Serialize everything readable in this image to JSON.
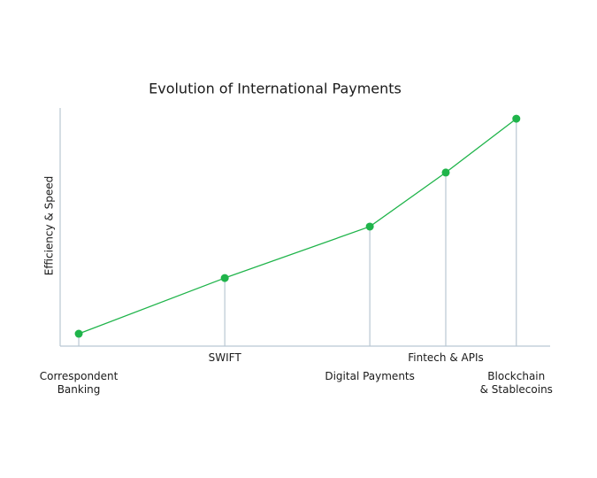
{
  "chart_data": {
    "type": "line",
    "title": "Evolution of International Payments",
    "y_label": "Efficiency & Speed",
    "categories": [
      [
        "Correspondent",
        "Banking"
      ],
      [
        "SWIFT"
      ],
      [
        "Digital Payments"
      ],
      [
        "Fintech & APIs"
      ],
      [
        "Blockchain",
        "& Stablecoins"
      ]
    ],
    "x": [
      3.8,
      33.6,
      63.2,
      78.7,
      93.1
    ],
    "xlim": [
      0,
      100
    ],
    "ylim": [
      0,
      100
    ],
    "series": [
      {
        "name": "Efficiency & Speed",
        "color": "#1fb44a",
        "values": [
          5.2,
          28.6,
          50.2,
          72.9,
          95.5
        ]
      }
    ],
    "drop_line_color": "#b9c7d3"
  }
}
